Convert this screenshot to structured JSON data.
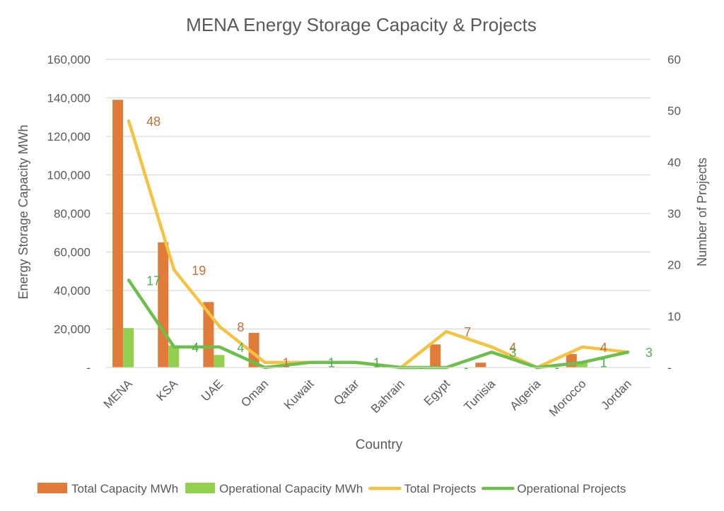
{
  "chart_data": {
    "type": "bar",
    "title": "MENA Energy Storage Capacity & Projects",
    "xlabel": "Country",
    "ylabel": "Energy Storage Capacity MWh",
    "y2label": "Number of Projects",
    "categories": [
      "MENA",
      "KSA",
      "UAE",
      "Oman",
      "Kuwait",
      "Qatar",
      "Bahrain",
      "Egypt",
      "Tunisia",
      "Algeria",
      "Morocco",
      "Jordan"
    ],
    "ylim": [
      0,
      160000
    ],
    "y2lim": [
      0,
      60
    ],
    "yticks": [
      "-",
      "20,000",
      "40,000",
      "60,000",
      "80,000",
      "100,000",
      "120,000",
      "140,000",
      "160,000"
    ],
    "y2ticks": [
      "-",
      "10",
      "20",
      "30",
      "40",
      "50",
      "60"
    ],
    "grid": true,
    "legend_position": "bottom",
    "series": [
      {
        "name": "Total Capacity MWh",
        "kind": "bar",
        "axis": "left",
        "color": "#E07B39",
        "values": [
          139000,
          65000,
          34000,
          18000,
          0,
          0,
          0,
          12000,
          2500,
          0,
          7000,
          0
        ]
      },
      {
        "name": "Operational Capacity MWh",
        "kind": "bar",
        "axis": "left",
        "color": "#92D050",
        "values": [
          20500,
          11500,
          6500,
          0,
          0,
          0,
          0,
          0,
          0,
          0,
          2500,
          0
        ]
      },
      {
        "name": "Total Projects",
        "kind": "line",
        "axis": "right",
        "color": "#F5C342",
        "values": [
          48,
          19,
          8,
          1,
          1,
          1,
          0,
          7,
          4,
          0,
          4,
          3
        ]
      },
      {
        "name": "Operational Projects",
        "kind": "line",
        "axis": "right",
        "color": "#6BBF4A",
        "values": [
          17,
          4,
          4,
          0,
          1,
          1,
          0,
          0,
          3,
          0,
          1,
          3
        ]
      }
    ],
    "data_labels": [
      {
        "series": 2,
        "index": 0,
        "text": "48",
        "color": "#C0703A"
      },
      {
        "series": 2,
        "index": 1,
        "text": "19",
        "color": "#C0703A"
      },
      {
        "series": 2,
        "index": 2,
        "text": "8",
        "color": "#C0703A"
      },
      {
        "series": 2,
        "index": 3,
        "text": "1",
        "color": "#C0703A"
      },
      {
        "series": 2,
        "index": 7,
        "text": "7",
        "color": "#C0703A"
      },
      {
        "series": 2,
        "index": 8,
        "text": "4",
        "color": "#C0703A"
      },
      {
        "series": 2,
        "index": 10,
        "text": "4",
        "color": "#C0703A"
      },
      {
        "series": 3,
        "index": 0,
        "text": "17",
        "color": "#4CAF50"
      },
      {
        "series": 3,
        "index": 1,
        "text": "4",
        "color": "#4CAF50"
      },
      {
        "series": 3,
        "index": 2,
        "text": "4",
        "color": "#4CAF50"
      },
      {
        "series": 3,
        "index": 4,
        "text": "1",
        "color": "#4CAF50"
      },
      {
        "series": 3,
        "index": 5,
        "text": "1",
        "color": "#4CAF50"
      },
      {
        "series": 3,
        "index": 6,
        "text": "-",
        "color": "#4CAF50"
      },
      {
        "series": 3,
        "index": 7,
        "text": "-",
        "color": "#4CAF50"
      },
      {
        "series": 3,
        "index": 8,
        "text": "3",
        "color": "#4CAF50"
      },
      {
        "series": 3,
        "index": 9,
        "text": "-",
        "color": "#4CAF50"
      },
      {
        "series": 3,
        "index": 10,
        "text": "1",
        "color": "#4CAF50"
      },
      {
        "series": 3,
        "index": 11,
        "text": "3",
        "color": "#4CAF50"
      }
    ]
  }
}
